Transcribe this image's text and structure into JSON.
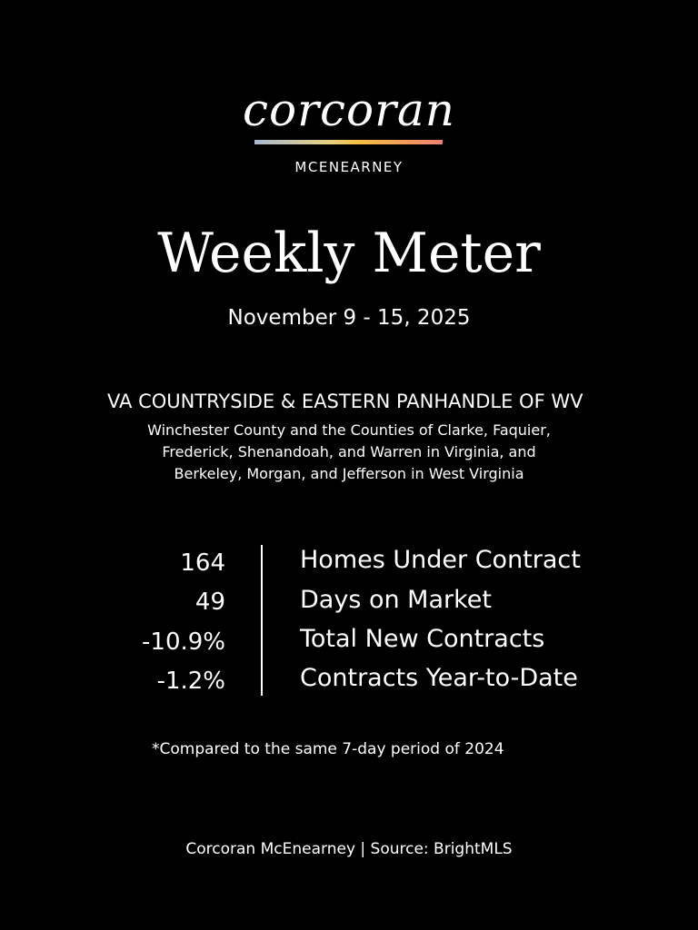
{
  "logo": {
    "wordmark": "corcoran",
    "sub": "MCENEARNEY",
    "gradient": [
      "#a8b8d0",
      "#f4c040",
      "#f08070"
    ]
  },
  "title": "Weekly Meter",
  "dates": "November 9 - 15, 2025",
  "region": {
    "name": "VA COUNTRYSIDE & EASTERN PANHANDLE OF WV",
    "lines": [
      "Winchester County and the Counties of Clarke, Faquier,",
      "Frederick, Shenandoah, and Warren in Virginia, and",
      "Berkeley, Morgan, and Jefferson in West Virginia"
    ]
  },
  "stats": [
    {
      "value": "164",
      "label": "Homes Under Contract"
    },
    {
      "value": "49",
      "label": "Days on Market"
    },
    {
      "value": "-10.9%",
      "label": "Total New Contracts"
    },
    {
      "value": "-1.2%",
      "label": "Contracts Year-to-Date"
    }
  ],
  "note": "*Compared to the same 7-day period of 2024",
  "footer": "Corcoran McEnearney | Source: BrightMLS"
}
